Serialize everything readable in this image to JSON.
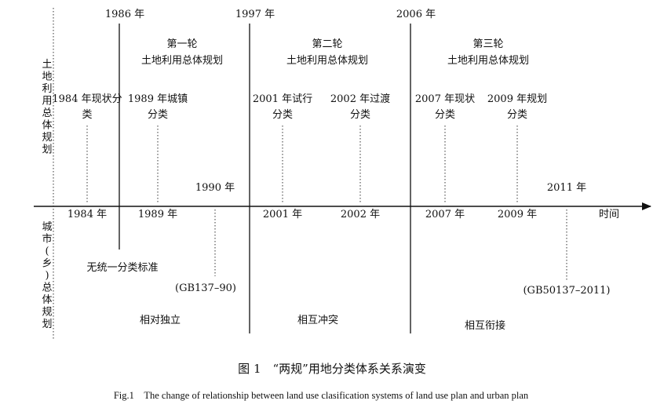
{
  "left_labels": {
    "top": "土地利用总体规划",
    "bottom": "城市(乡)总体规划"
  },
  "phase_years": [
    "1986 年",
    "1997 年",
    "2006 年"
  ],
  "rounds": [
    {
      "line1": "第一轮",
      "line2": "土地利用总体规划"
    },
    {
      "line1": "第二轮",
      "line2": "土地利用总体规划"
    },
    {
      "line1": "第三轮",
      "line2": "土地利用总体规划"
    }
  ],
  "land_classifications": [
    {
      "line1": "1984 年现状分",
      "line2": "类"
    },
    {
      "line1": "1989 年城镇",
      "line2": "分类"
    },
    {
      "line1": "2001 年试行",
      "line2": "分类"
    },
    {
      "line1": "2002 年过渡",
      "line2": "分类"
    },
    {
      "line1": "2007 年现状",
      "line2": "分类"
    },
    {
      "line1": "2009 年规划",
      "line2": "分类"
    }
  ],
  "urban_years_above": [
    "1990 年",
    "2011 年"
  ],
  "axis_years": [
    "1984 年",
    "1989 年",
    "2001 年",
    "2002 年",
    "2007 年",
    "2009 年"
  ],
  "axis_label": "时间",
  "urban_notes": {
    "no_standard": "无统一分类标准",
    "gb1990": "(GB137–90)",
    "gb2011": "(GB50137–2011)"
  },
  "relationships": [
    "相对独立",
    "相互冲突",
    "相互衔接"
  ],
  "caption": {
    "cn": "图 1　“两规”用地分类体系关系演变",
    "en": "Fig.1　The change of relationship between land use clasification systems of land use plan and urban plan"
  }
}
